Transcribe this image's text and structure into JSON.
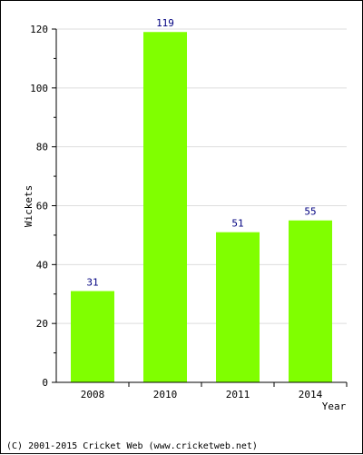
{
  "chart_data": {
    "type": "bar",
    "categories": [
      "2008",
      "2010",
      "2011",
      "2014"
    ],
    "values": [
      31,
      119,
      51,
      55
    ],
    "data_labels": [
      "31",
      "119",
      "51",
      "55"
    ],
    "xlabel": "Year",
    "ylabel": "Wickets",
    "ylim": [
      0,
      120
    ],
    "yticks": [
      "0",
      "20",
      "40",
      "60",
      "80",
      "100",
      "120"
    ],
    "grid": true,
    "bar_color": "#80ff00",
    "label_color": "#000080"
  },
  "footer": {
    "copyright": "(C) 2001-2015 Cricket Web (www.cricketweb.net)"
  }
}
